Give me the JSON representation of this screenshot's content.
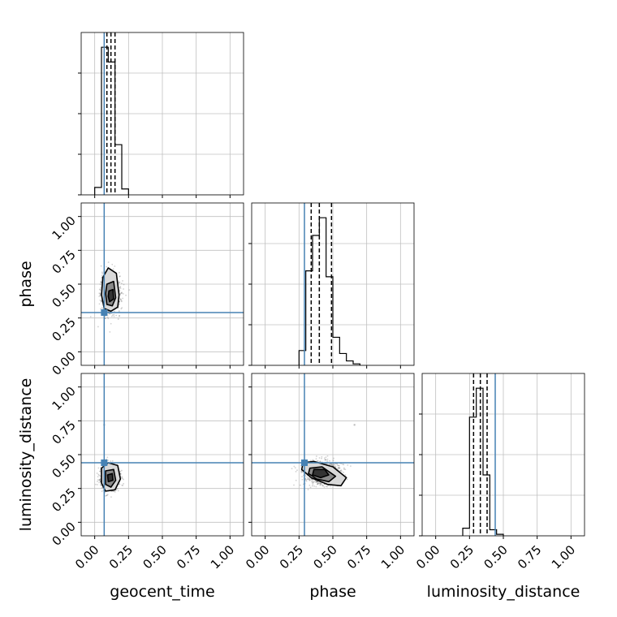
{
  "chart_data": {
    "type": "corner",
    "parameters": [
      "geocent_time",
      "phase",
      "luminosity_distance"
    ],
    "axis_range": [
      -0.1,
      1.1
    ],
    "tick_values": [
      0.0,
      0.25,
      0.5,
      0.75,
      1.0
    ],
    "tick_labels": [
      "0.00",
      "0.25",
      "0.50",
      "0.75",
      "1.00"
    ],
    "grid": true,
    "colors": {
      "truth": "#4682b4",
      "histogram": "#000000",
      "grid": "#c0c0c0"
    },
    "truths": {
      "geocent_time": 0.07,
      "phase": 0.29,
      "luminosity_distance": 0.44
    },
    "quantiles": {
      "geocent_time": [
        0.09,
        0.12,
        0.15
      ],
      "phase": [
        0.34,
        0.4,
        0.49
      ],
      "luminosity_distance": [
        0.28,
        0.33,
        0.38
      ]
    },
    "histograms": {
      "geocent_time": {
        "bin_edges": [
          0.0,
          0.05,
          0.1,
          0.15,
          0.2,
          0.25
        ],
        "counts": [
          5,
          100,
          90,
          34,
          4
        ]
      },
      "phase": {
        "bin_edges": [
          0.25,
          0.3,
          0.35,
          0.4,
          0.45,
          0.5,
          0.55,
          0.6,
          0.65,
          0.7
        ],
        "counts": [
          10,
          64,
          88,
          100,
          60,
          19,
          8,
          3,
          1
        ]
      },
      "luminosity_distance": {
        "bin_edges": [
          0.2,
          0.25,
          0.3,
          0.35,
          0.4,
          0.45,
          0.5
        ],
        "counts": [
          5,
          78,
          97,
          40,
          4,
          1
        ]
      }
    },
    "scatter_panels": [
      {
        "x": "geocent_time",
        "y": "phase",
        "center": [
          0.12,
          0.43
        ],
        "spread": [
          0.035,
          0.07
        ]
      },
      {
        "x": "geocent_time",
        "y": "luminosity_distance",
        "center": [
          0.11,
          0.33
        ],
        "spread": [
          0.035,
          0.045
        ]
      },
      {
        "x": "phase",
        "y": "luminosity_distance",
        "center": [
          0.42,
          0.36
        ],
        "spread": [
          0.07,
          0.045
        ]
      }
    ],
    "contour_levels": [
      {
        "fill": "#d9d9d9",
        "points": [
          [
            0.06,
            0.55
          ],
          [
            0.1,
            0.62
          ],
          [
            0.16,
            0.58
          ],
          [
            0.18,
            0.42
          ],
          [
            0.17,
            0.33
          ],
          [
            0.12,
            0.3
          ],
          [
            0.07,
            0.32
          ],
          [
            0.05,
            0.42
          ]
        ]
      },
      {
        "fill": "#8a8a8a",
        "points": [
          [
            0.09,
            0.5
          ],
          [
            0.14,
            0.52
          ],
          [
            0.155,
            0.4
          ],
          [
            0.13,
            0.34
          ],
          [
            0.09,
            0.35
          ],
          [
            0.08,
            0.43
          ]
        ]
      },
      {
        "fill": "#333333",
        "points": [
          [
            0.105,
            0.45
          ],
          [
            0.135,
            0.46
          ],
          [
            0.14,
            0.39
          ],
          [
            0.11,
            0.37
          ],
          [
            0.1,
            0.41
          ]
        ]
      }
    ],
    "contour_levels_b": [
      {
        "fill": "#d9d9d9",
        "points": [
          [
            0.05,
            0.4
          ],
          [
            0.1,
            0.44
          ],
          [
            0.17,
            0.42
          ],
          [
            0.19,
            0.32
          ],
          [
            0.15,
            0.24
          ],
          [
            0.08,
            0.23
          ],
          [
            0.05,
            0.29
          ]
        ]
      },
      {
        "fill": "#8a8a8a",
        "points": [
          [
            0.08,
            0.38
          ],
          [
            0.14,
            0.39
          ],
          [
            0.155,
            0.31
          ],
          [
            0.12,
            0.26
          ],
          [
            0.08,
            0.28
          ]
        ]
      },
      {
        "fill": "#333333",
        "points": [
          [
            0.095,
            0.35
          ],
          [
            0.13,
            0.36
          ],
          [
            0.135,
            0.31
          ],
          [
            0.1,
            0.3
          ]
        ]
      }
    ],
    "contour_levels_c": [
      {
        "fill": "#d9d9d9",
        "points": [
          [
            0.28,
            0.44
          ],
          [
            0.36,
            0.45
          ],
          [
            0.5,
            0.41
          ],
          [
            0.6,
            0.33
          ],
          [
            0.56,
            0.27
          ],
          [
            0.46,
            0.28
          ],
          [
            0.34,
            0.33
          ],
          [
            0.27,
            0.39
          ]
        ]
      },
      {
        "fill": "#8a8a8a",
        "points": [
          [
            0.33,
            0.4
          ],
          [
            0.42,
            0.41
          ],
          [
            0.52,
            0.34
          ],
          [
            0.47,
            0.3
          ],
          [
            0.38,
            0.32
          ],
          [
            0.32,
            0.36
          ]
        ]
      },
      {
        "fill": "#333333",
        "points": [
          [
            0.36,
            0.39
          ],
          [
            0.44,
            0.39
          ],
          [
            0.47,
            0.35
          ],
          [
            0.41,
            0.33
          ],
          [
            0.35,
            0.35
          ]
        ]
      }
    ],
    "outliers": [
      {
        "panel": "phase-luminosity_distance",
        "x": 0.66,
        "y": 0.72
      },
      {
        "panel": "geocent_time-luminosity_distance",
        "x": 0.07,
        "y": 0.72
      }
    ]
  }
}
